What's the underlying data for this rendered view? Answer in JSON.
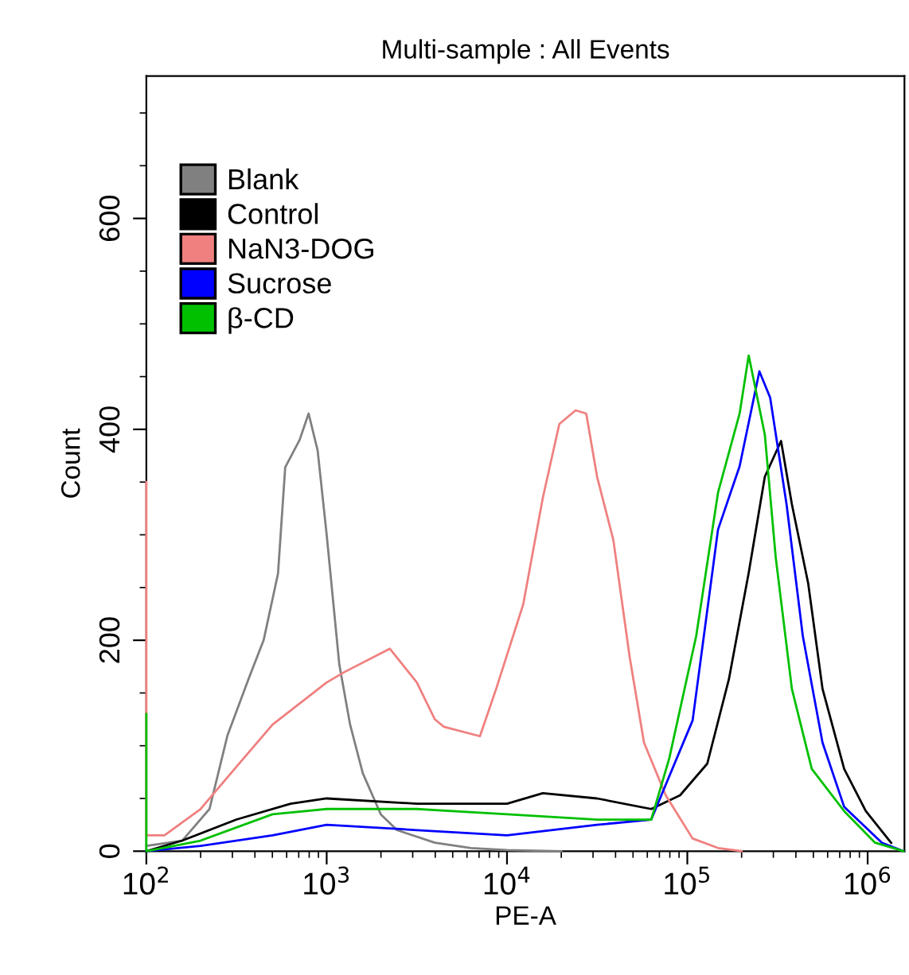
{
  "chart_data": {
    "type": "line",
    "title": "Multi-sample : All Events",
    "xlabel": "PE-A",
    "ylabel": "Count",
    "log": "x",
    "xlim": [
      100,
      1600000
    ],
    "ylim": [
      0,
      735
    ],
    "grid": false,
    "legend": "top left",
    "marker": "none",
    "line_style": "solid",
    "xticks": [
      {
        "value": 100,
        "label": "10$^{2}$"
      },
      {
        "value": 200,
        "label": null
      },
      {
        "value": 300,
        "label": null
      },
      {
        "value": 400,
        "label": null
      },
      {
        "value": 500,
        "label": null
      },
      {
        "value": 600,
        "label": null
      },
      {
        "value": 700,
        "label": null
      },
      {
        "value": 800,
        "label": null
      },
      {
        "value": 900,
        "label": null
      },
      {
        "value": 1000,
        "label": "10$^{3}$"
      },
      {
        "value": 2000,
        "label": null
      },
      {
        "value": 3000,
        "label": null
      },
      {
        "value": 4000,
        "label": null
      },
      {
        "value": 5000,
        "label": null
      },
      {
        "value": 6000,
        "label": null
      },
      {
        "value": 7000,
        "label": null
      },
      {
        "value": 8000,
        "label": null
      },
      {
        "value": 9000,
        "label": null
      },
      {
        "value": 10000,
        "label": "10$^{4}$"
      },
      {
        "value": 20000,
        "label": null
      },
      {
        "value": 30000,
        "label": null
      },
      {
        "value": 40000,
        "label": null
      },
      {
        "value": 50000,
        "label": null
      },
      {
        "value": 60000,
        "label": null
      },
      {
        "value": 70000,
        "label": null
      },
      {
        "value": 80000,
        "label": null
      },
      {
        "value": 90000,
        "label": null
      },
      {
        "value": 100000,
        "label": "10$^{5}$"
      },
      {
        "value": 200000,
        "label": null
      },
      {
        "value": 300000,
        "label": null
      },
      {
        "value": 400000,
        "label": null
      },
      {
        "value": 500000,
        "label": null
      },
      {
        "value": 600000,
        "label": null
      },
      {
        "value": 700000,
        "label": null
      },
      {
        "value": 800000,
        "label": null
      },
      {
        "value": 900000,
        "label": null
      },
      {
        "value": 1000000,
        "label": "10$^{6}$"
      }
    ],
    "yticks": [
      0,
      {
        "value": 50,
        "label": null
      },
      {
        "value": 100,
        "label": null
      },
      {
        "value": 150,
        "label": null
      },
      200,
      {
        "value": 250,
        "label": null
      },
      {
        "value": 300,
        "label": null
      },
      {
        "value": 350,
        "label": null
      },
      400,
      {
        "value": 450,
        "label": null
      },
      {
        "value": 500,
        "label": null
      },
      {
        "value": 550,
        "label": null
      },
      600,
      {
        "value": 650,
        "label": null
      },
      {
        "value": 700,
        "label": null
      }
    ],
    "series": [
      {
        "name": "Blank",
        "color": "#808080",
        "x": [
          100,
          158,
          224,
          282,
          372,
          447,
          537,
          589,
          708,
          794,
          891,
          1000,
          1175,
          1349,
          1585,
          1995,
          2455,
          3981,
          6310,
          10000,
          20000
        ],
        "values": [
          5,
          10,
          40,
          110,
          165,
          200,
          263,
          364,
          390,
          415,
          380,
          300,
          177,
          120,
          74,
          35,
          20,
          8,
          3,
          1,
          0
        ]
      },
      {
        "name": "Control",
        "color": "#000000",
        "x": [
          100,
          158,
          316,
          631,
          1000,
          3162,
          10000,
          15800,
          31600,
          63100,
          91200,
          129000,
          170000,
          219000,
          269000,
          331000,
          380000,
          468000,
          562000,
          741000,
          977000,
          1350000
        ],
        "values": [
          0,
          10,
          30,
          45,
          50,
          45,
          45,
          55,
          50,
          40,
          53,
          83,
          163,
          264,
          355,
          389,
          329,
          254,
          154,
          78,
          38,
          8
        ]
      },
      {
        "name": "NaN3-DOG",
        "color": "#f08080",
        "x": [
          100,
          100,
          126,
          200,
          316,
          501,
          708,
          1000,
          1259,
          2239,
          3162,
          3981,
          4467,
          7079,
          8710,
          12300,
          15800,
          19500,
          24000,
          27500,
          31600,
          38900,
          47900,
          57500,
          75900,
          107000,
          148000,
          200000
        ],
        "values": [
          350,
          15,
          15,
          40,
          80,
          120,
          140,
          160,
          170,
          192,
          160,
          125,
          118,
          109,
          154,
          234,
          335,
          405,
          418,
          415,
          355,
          295,
          184,
          103,
          53,
          12,
          3,
          0
        ]
      },
      {
        "name": "Sucrose",
        "color": "#0000ff",
        "x": [
          100,
          200,
          501,
          1000,
          3162,
          10000,
          31600,
          63100,
          75900,
          107000,
          148000,
          195000,
          251000,
          288000,
          355000,
          437000,
          562000,
          741000,
          1200000,
          1580000
        ],
        "values": [
          0,
          5,
          15,
          25,
          20,
          15,
          25,
          30,
          63,
          124,
          305,
          365,
          455,
          430,
          329,
          204,
          103,
          42,
          8,
          0
        ]
      },
      {
        "name": "β-CD",
        "color": "#00c000",
        "x": [
          100,
          100,
          200,
          501,
          1000,
          3162,
          10000,
          31600,
          63100,
          79400,
          112000,
          148000,
          195000,
          219000,
          269000,
          309000,
          380000,
          490000,
          741000,
          1100000,
          1580000
        ],
        "values": [
          130,
          0,
          10,
          35,
          40,
          40,
          35,
          30,
          30,
          88,
          204,
          340,
          415,
          470,
          395,
          279,
          154,
          78,
          38,
          8,
          0
        ]
      }
    ]
  }
}
